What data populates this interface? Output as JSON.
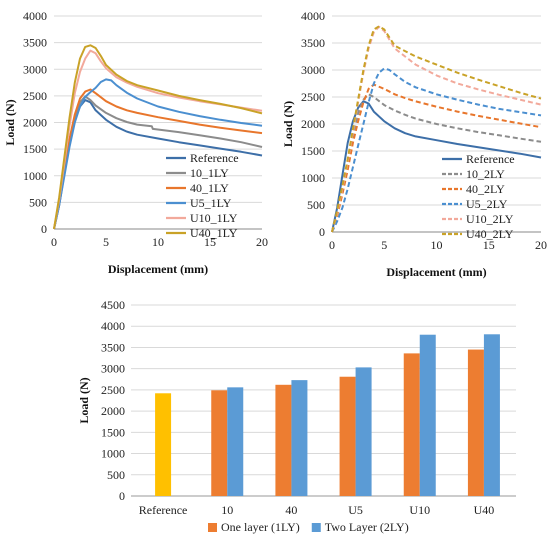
{
  "chart_data": [
    {
      "type": "line",
      "xlabel": "Displacement (mm)",
      "ylabel": "Load (N)",
      "xlim": [
        0,
        20
      ],
      "ylim": [
        0,
        4000
      ],
      "xticks": [
        "0",
        "5",
        "10",
        "15",
        "20"
      ],
      "yticks": [
        "0",
        "500",
        "1000",
        "1500",
        "2000",
        "2500",
        "3000",
        "3500",
        "4000"
      ],
      "grid": "horizontal",
      "legend_position": "bottom-right",
      "series": [
        {
          "name": "Reference",
          "color": "#3D6FA8",
          "dash": "solid",
          "x": [
            0,
            0.5,
            1,
            1.5,
            2,
            2.5,
            3,
            3.5,
            4,
            5,
            6,
            7,
            8,
            10,
            12,
            14,
            16,
            18,
            20
          ],
          "y": [
            0,
            450,
            1050,
            1650,
            2050,
            2300,
            2420,
            2380,
            2230,
            2050,
            1920,
            1830,
            1770,
            1700,
            1630,
            1570,
            1510,
            1450,
            1380
          ]
        },
        {
          "name": "10_1LY",
          "color": "#8C8C8C",
          "dash": "solid",
          "x": [
            0,
            0.5,
            1,
            1.5,
            2,
            2.5,
            3,
            3.5,
            4,
            5,
            6,
            7,
            8,
            9.4,
            9.5,
            12,
            14,
            16,
            18,
            20
          ],
          "y": [
            0,
            450,
            1050,
            1650,
            2100,
            2380,
            2490,
            2420,
            2320,
            2180,
            2080,
            2010,
            1960,
            1930,
            1880,
            1820,
            1760,
            1700,
            1630,
            1540
          ]
        },
        {
          "name": "40_1LY",
          "color": "#E8762C",
          "dash": "solid",
          "x": [
            0,
            0.5,
            1,
            1.5,
            2,
            2.5,
            3,
            3.5,
            4,
            5,
            6,
            7,
            8,
            10,
            12,
            14,
            16,
            18,
            20
          ],
          "y": [
            0,
            500,
            1100,
            1700,
            2150,
            2450,
            2580,
            2620,
            2550,
            2400,
            2300,
            2230,
            2180,
            2100,
            2030,
            1960,
            1900,
            1850,
            1800
          ]
        },
        {
          "name": "U5_1LY",
          "color": "#4B8FD0",
          "dash": "solid",
          "x": [
            0,
            0.5,
            1,
            1.5,
            2,
            2.5,
            3,
            3.5,
            4,
            4.5,
            5,
            5.5,
            6,
            7,
            8,
            10,
            12,
            14,
            16,
            18,
            20
          ],
          "y": [
            0,
            450,
            1000,
            1550,
            2000,
            2300,
            2480,
            2570,
            2650,
            2760,
            2810,
            2790,
            2700,
            2560,
            2450,
            2300,
            2200,
            2120,
            2050,
            1990,
            1940
          ]
        },
        {
          "name": "U10_1LY",
          "color": "#F2A99B",
          "dash": "solid",
          "x": [
            0,
            0.5,
            1,
            1.5,
            2,
            2.5,
            3,
            3.5,
            4,
            4.5,
            5,
            6,
            7,
            8,
            10,
            12,
            14,
            16,
            18,
            20
          ],
          "y": [
            0,
            550,
            1250,
            1950,
            2550,
            2950,
            3200,
            3350,
            3300,
            3150,
            3020,
            2850,
            2750,
            2670,
            2550,
            2470,
            2400,
            2340,
            2280,
            2220
          ]
        },
        {
          "name": "U40_1LY",
          "color": "#C9A227",
          "dash": "solid",
          "x": [
            0,
            0.5,
            1,
            1.5,
            2,
            2.5,
            3,
            3.5,
            4,
            4.5,
            5,
            6,
            7,
            8,
            10,
            12,
            14,
            16,
            18,
            20
          ],
          "y": [
            0,
            600,
            1350,
            2100,
            2750,
            3200,
            3420,
            3450,
            3400,
            3250,
            3080,
            2900,
            2780,
            2700,
            2600,
            2500,
            2420,
            2350,
            2270,
            2170
          ]
        }
      ]
    },
    {
      "type": "line",
      "xlabel": "Displacement (mm)",
      "ylabel": "Load (N)",
      "xlim": [
        0,
        20
      ],
      "ylim": [
        0,
        4000
      ],
      "xticks": [
        "0",
        "5",
        "10",
        "15",
        "20"
      ],
      "yticks": [
        "0",
        "500",
        "1000",
        "1500",
        "2000",
        "2500",
        "3000",
        "3500",
        "4000"
      ],
      "grid": "horizontal",
      "legend_position": "bottom-right",
      "series": [
        {
          "name": "Reference",
          "color": "#3D6FA8",
          "dash": "solid",
          "x": [
            0,
            0.5,
            1,
            1.5,
            2,
            2.5,
            3,
            3.5,
            4,
            5,
            6,
            7,
            8,
            10,
            12,
            14,
            16,
            18,
            20
          ],
          "y": [
            0,
            450,
            1050,
            1650,
            2050,
            2300,
            2420,
            2380,
            2230,
            2050,
            1920,
            1830,
            1770,
            1700,
            1630,
            1570,
            1510,
            1450,
            1380
          ]
        },
        {
          "name": "10_2LY",
          "color": "#8C8C8C",
          "dash": "dashed",
          "x": [
            0,
            0.5,
            1,
            1.5,
            2,
            2.5,
            3,
            3.5,
            4,
            5,
            6,
            7,
            8,
            10,
            12,
            14,
            16,
            18,
            20
          ],
          "y": [
            0,
            350,
            800,
            1300,
            1800,
            2200,
            2450,
            2550,
            2500,
            2350,
            2250,
            2170,
            2100,
            2000,
            1920,
            1850,
            1790,
            1730,
            1670
          ]
        },
        {
          "name": "40_2LY",
          "color": "#E8762C",
          "dash": "dashed",
          "x": [
            0,
            0.5,
            1,
            1.5,
            2,
            2.5,
            3,
            3.5,
            4,
            5,
            6,
            7,
            8,
            10,
            12,
            14,
            16,
            18,
            20
          ],
          "y": [
            0,
            300,
            700,
            1150,
            1650,
            2050,
            2400,
            2650,
            2730,
            2650,
            2550,
            2480,
            2420,
            2320,
            2230,
            2150,
            2080,
            2010,
            1940
          ]
        },
        {
          "name": "U5_2LY",
          "color": "#4B8FD0",
          "dash": "dashed",
          "x": [
            0,
            0.5,
            1,
            1.5,
            2,
            2.5,
            3,
            3.5,
            4,
            4.5,
            5,
            5.5,
            6,
            7,
            8,
            10,
            12,
            14,
            16,
            18,
            20
          ],
          "y": [
            0,
            200,
            450,
            800,
            1200,
            1600,
            2000,
            2400,
            2750,
            2950,
            3030,
            3000,
            2920,
            2780,
            2680,
            2550,
            2450,
            2360,
            2280,
            2220,
            2160
          ]
        },
        {
          "name": "U10_2LY",
          "color": "#F2A99B",
          "dash": "dashed",
          "x": [
            0,
            0.5,
            1,
            1.5,
            2,
            2.5,
            3,
            3.5,
            4,
            4.5,
            5,
            6,
            7,
            8,
            10,
            12,
            14,
            16,
            18,
            20
          ],
          "y": [
            0,
            350,
            800,
            1300,
            1850,
            2400,
            2950,
            3400,
            3700,
            3800,
            3720,
            3400,
            3250,
            3100,
            2900,
            2750,
            2640,
            2540,
            2450,
            2360
          ]
        },
        {
          "name": "U40_2LY",
          "color": "#C9A227",
          "dash": "dashed",
          "x": [
            0,
            0.5,
            1,
            1.5,
            2,
            2.5,
            3,
            3.5,
            4,
            4.5,
            5,
            6,
            7,
            8,
            10,
            12,
            14,
            16,
            18,
            20
          ],
          "y": [
            0,
            400,
            850,
            1350,
            1900,
            2450,
            3000,
            3450,
            3750,
            3810,
            3750,
            3450,
            3350,
            3250,
            3100,
            2950,
            2820,
            2700,
            2580,
            2470
          ]
        }
      ]
    },
    {
      "type": "bar",
      "ylabel": "Load (N)",
      "ylim": [
        0,
        4500
      ],
      "yticks": [
        "0",
        "500",
        "1000",
        "1500",
        "2000",
        "2500",
        "3000",
        "3500",
        "4000",
        "4500"
      ],
      "grid": "horizontal",
      "legend_position": "bottom",
      "categories": [
        "Reference",
        "10",
        "40",
        "U5",
        "U10",
        "U40"
      ],
      "series": [
        {
          "name": "One layer (1LY)",
          "color": "#ED7D31",
          "values": [
            2420,
            2490,
            2620,
            2810,
            3360,
            3450
          ]
        },
        {
          "name": "Two Layer (2LY)",
          "color": "#5B9BD5",
          "values": [
            null,
            2560,
            2730,
            3030,
            3800,
            3810
          ]
        }
      ],
      "reference_bar": {
        "category": "Reference",
        "value": 2420,
        "color": "#FFC000"
      }
    }
  ]
}
